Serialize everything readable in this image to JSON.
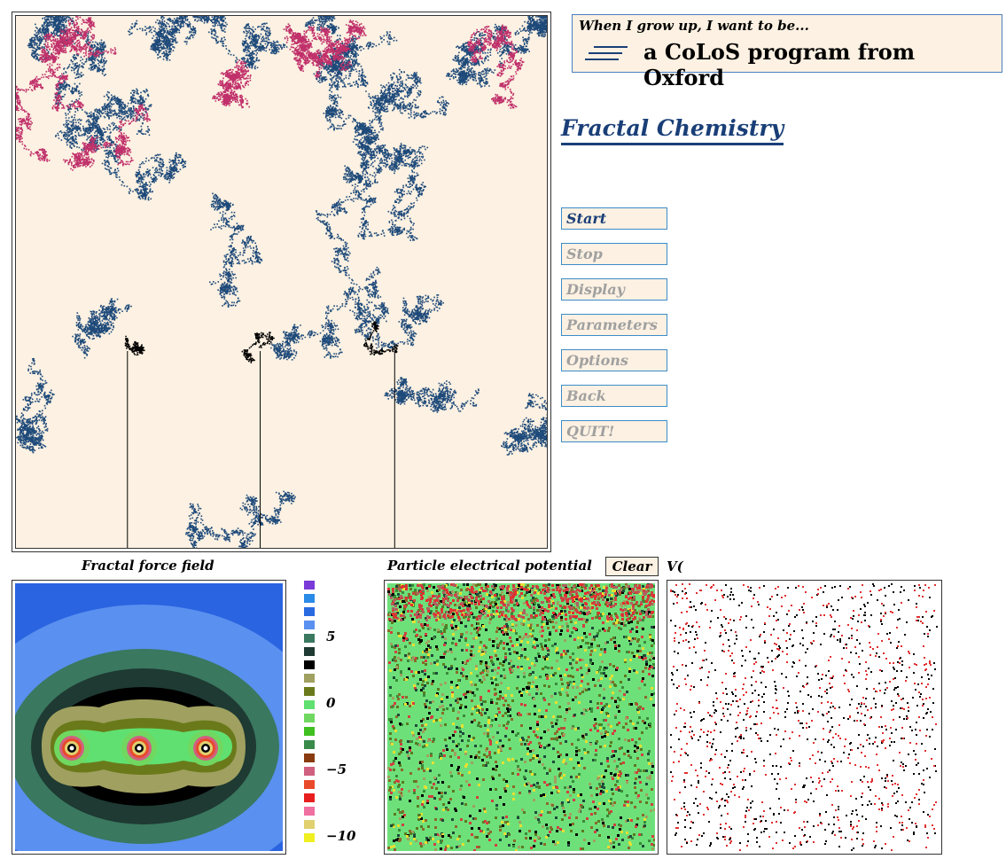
{
  "branding": {
    "tagline": "When I grow up, I want to be...",
    "program": "a CoLoS program from Oxford"
  },
  "app_title": "Fractal Chemistry",
  "menu": [
    {
      "label": "Start",
      "enabled": true
    },
    {
      "label": "Stop",
      "enabled": false
    },
    {
      "label": "Display",
      "enabled": false
    },
    {
      "label": "Parameters",
      "enabled": false
    },
    {
      "label": "Options",
      "enabled": false
    },
    {
      "label": "Back",
      "enabled": false
    },
    {
      "label": "QUIT!",
      "enabled": false
    }
  ],
  "panels": {
    "force_field": {
      "label": "Fractal force field"
    },
    "potential": {
      "label": "Particle electrical potential",
      "clear_label": "Clear"
    },
    "velocity": {
      "label": "V("
    }
  },
  "legend": {
    "ticks": [
      "5",
      "0",
      "−5",
      "−10"
    ],
    "colors": [
      "#7a3ad8",
      "#2a8ae8",
      "#2a6ae0",
      "#5a90f0",
      "#3a7860",
      "#1e3a32",
      "#000000",
      "#a0a060",
      "#6a7a1a",
      "#60e070",
      "#70d860",
      "#40c020",
      "#3a8a4a",
      "#8a3a10",
      "#d06080",
      "#e84a2a",
      "#e81e1e",
      "#f070a0",
      "#e0d070",
      "#f0f020"
    ]
  },
  "colors": {
    "cream": "#fcf1e2",
    "navy": "#1a3f78",
    "walker_blue": "#1e4a7a",
    "walker_pink": "#c0306a",
    "potential_bg": "#6ee07a"
  }
}
